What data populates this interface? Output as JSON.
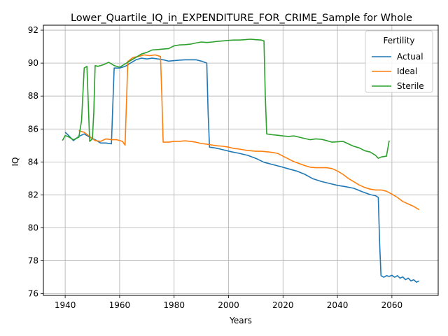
{
  "chart_data": {
    "type": "line",
    "title": "Lower_Quartile_IQ_in_EXPENDITURE_FOR_CRIME_Sample for Whole",
    "xlabel": "Years",
    "ylabel": "IQ",
    "xlim": [
      1932,
      2077
    ],
    "ylim": [
      75.9,
      92.3
    ],
    "xticks": [
      1940,
      1960,
      1980,
      2000,
      2020,
      2040,
      2060
    ],
    "yticks": [
      76,
      78,
      80,
      82,
      84,
      86,
      88,
      90,
      92
    ],
    "grid": true,
    "legend": {
      "title": "Fertility",
      "position": "top-right"
    },
    "series": [
      {
        "name": "Actual",
        "color": "#1f77b4",
        "x": [
          1940,
          1941,
          1943,
          1945,
          1947,
          1949,
          1951,
          1953,
          1955,
          1957,
          1957.5,
          1958,
          1960,
          1962,
          1964,
          1966,
          1968,
          1970,
          1972,
          1974,
          1976,
          1978,
          1980,
          1982,
          1984,
          1986,
          1988,
          1990,
          1992,
          1992.5,
          1993,
          1995,
          1997,
          1999,
          2001,
          2004,
          2007,
          2010,
          2013,
          2016,
          2019,
          2022,
          2025,
          2028,
          2031,
          2034,
          2037,
          2040,
          2043,
          2046,
          2049,
          2052,
          2054,
          2055,
          2055.5,
          2056,
          2057,
          2058,
          2059,
          2060,
          2061,
          2062,
          2063,
          2064,
          2065,
          2066,
          2067,
          2068,
          2069,
          2070
        ],
        "y": [
          85.8,
          85.65,
          85.3,
          85.55,
          85.7,
          85.5,
          85.35,
          85.15,
          85.15,
          85.1,
          87.5,
          89.7,
          89.7,
          89.8,
          90.0,
          90.2,
          90.3,
          90.25,
          90.3,
          90.25,
          90.2,
          90.12,
          90.15,
          90.18,
          90.2,
          90.2,
          90.2,
          90.12,
          90.0,
          87.0,
          84.9,
          84.85,
          84.78,
          84.7,
          84.62,
          84.52,
          84.4,
          84.22,
          83.98,
          83.85,
          83.72,
          83.58,
          83.45,
          83.25,
          82.98,
          82.82,
          82.7,
          82.58,
          82.5,
          82.4,
          82.2,
          82.02,
          81.95,
          81.85,
          79.0,
          77.1,
          77.0,
          77.1,
          77.05,
          77.12,
          77.0,
          77.1,
          76.95,
          77.02,
          76.85,
          76.95,
          76.78,
          76.85,
          76.7,
          76.78
        ]
      },
      {
        "name": "Ideal",
        "color": "#ff7f0e",
        "x": [
          1945,
          1947,
          1949,
          1951,
          1953,
          1955,
          1957,
          1959,
          1961,
          1962,
          1962.5,
          1963,
          1965,
          1967,
          1969,
          1971,
          1973,
          1975,
          1975.5,
          1976,
          1978,
          1980,
          1982,
          1984,
          1986,
          1988,
          1990,
          1992,
          1994,
          1996,
          1998,
          2000,
          2002,
          2004,
          2006,
          2008,
          2010,
          2012,
          2014,
          2016,
          2018,
          2020,
          2022,
          2024,
          2026,
          2028,
          2030,
          2032,
          2034,
          2036,
          2038,
          2040,
          2042,
          2044,
          2046,
          2048,
          2050,
          2052,
          2054,
          2056,
          2058,
          2060,
          2062,
          2064,
          2066,
          2068,
          2070
        ],
        "y": [
          85.9,
          85.8,
          85.55,
          85.3,
          85.25,
          85.4,
          85.35,
          85.35,
          85.25,
          85.02,
          87.5,
          90.1,
          90.35,
          90.4,
          90.5,
          90.45,
          90.5,
          90.4,
          88.0,
          85.2,
          85.2,
          85.25,
          85.25,
          85.28,
          85.25,
          85.2,
          85.12,
          85.08,
          85.02,
          84.98,
          84.95,
          84.9,
          84.82,
          84.78,
          84.72,
          84.68,
          84.65,
          84.65,
          84.62,
          84.58,
          84.52,
          84.35,
          84.18,
          84.02,
          83.9,
          83.78,
          83.68,
          83.65,
          83.65,
          83.65,
          83.6,
          83.45,
          83.25,
          83.0,
          82.8,
          82.6,
          82.45,
          82.35,
          82.3,
          82.3,
          82.22,
          82.05,
          81.85,
          81.6,
          81.45,
          81.3,
          81.1
        ]
      },
      {
        "name": "Sterile",
        "color": "#2ca02c",
        "x": [
          1939,
          1940,
          1941,
          1943,
          1945,
          1946,
          1947,
          1948,
          1949,
          1950,
          1950.5,
          1951,
          1952,
          1954,
          1956,
          1958,
          1960,
          1962,
          1964,
          1966,
          1968,
          1970,
          1972,
          1974,
          1976,
          1978,
          1980,
          1982,
          1984,
          1986,
          1988,
          1990,
          1992,
          1994,
          1996,
          1998,
          2000,
          2002,
          2004,
          2006,
          2008,
          2010,
          2012,
          2013,
          2013.5,
          2014,
          2016,
          2018,
          2020,
          2022,
          2024,
          2026,
          2028,
          2030,
          2032,
          2034,
          2036,
          2038,
          2040,
          2042,
          2044,
          2046,
          2048,
          2050,
          2052,
          2054,
          2055,
          2056,
          2058,
          2059
        ],
        "y": [
          85.3,
          85.6,
          85.55,
          85.35,
          85.5,
          86.5,
          89.7,
          89.8,
          85.25,
          85.4,
          87.0,
          89.85,
          89.8,
          89.9,
          90.05,
          89.85,
          89.75,
          89.95,
          90.15,
          90.35,
          90.55,
          90.65,
          90.8,
          90.82,
          90.85,
          90.88,
          91.05,
          91.1,
          91.12,
          91.15,
          91.22,
          91.28,
          91.25,
          91.28,
          91.32,
          91.35,
          91.38,
          91.4,
          91.4,
          91.42,
          91.45,
          91.42,
          91.4,
          91.35,
          88.0,
          85.7,
          85.65,
          85.62,
          85.58,
          85.55,
          85.58,
          85.5,
          85.42,
          85.35,
          85.4,
          85.38,
          85.3,
          85.2,
          85.22,
          85.25,
          85.1,
          84.95,
          84.85,
          84.68,
          84.6,
          84.4,
          84.22,
          84.3,
          84.35,
          85.3
        ]
      }
    ]
  }
}
